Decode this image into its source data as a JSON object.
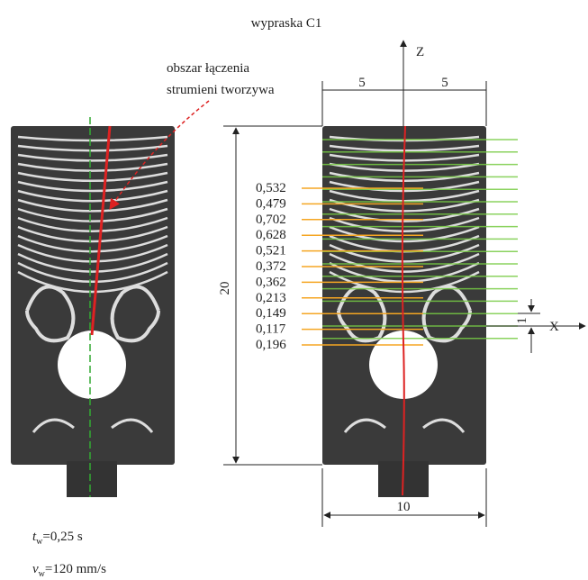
{
  "title": "wypraska C1",
  "annotation": {
    "line1": "obszar łączenia",
    "line2": "strumieni tworzywa"
  },
  "axes": {
    "z": "Z",
    "x": "X"
  },
  "dimensions": {
    "top_left": "5",
    "top_right": "5",
    "height": "20",
    "bottom": "10",
    "step": "1"
  },
  "measurements": [
    "0,532",
    "0,479",
    "0,702",
    "0,628",
    "0,521",
    "0,372",
    "0,362",
    "0,213",
    "0,149",
    "0,117",
    "0,196"
  ],
  "conditions": [
    {
      "symbol": "t",
      "subscript": "w",
      "text": "=0,25 s"
    },
    {
      "symbol": "v",
      "subscript": "w",
      "text": "=120 mm/s"
    }
  ]
}
